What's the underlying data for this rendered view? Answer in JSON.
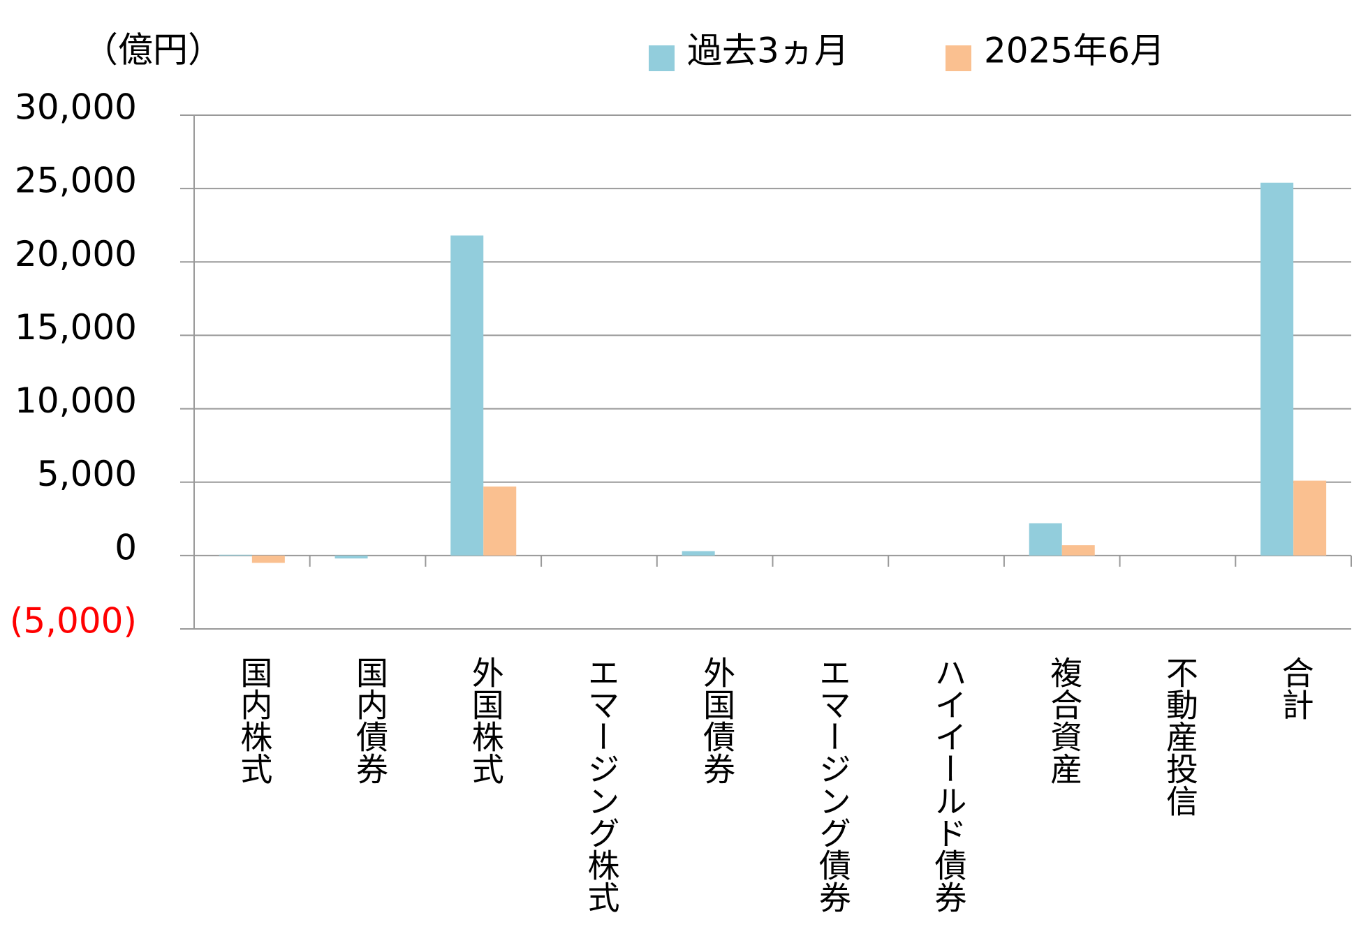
{
  "chart_data": {
    "type": "bar",
    "unit_label": "（億円）",
    "categories": [
      "国内株式",
      "国内債券",
      "外国株式",
      "エマージング株式",
      "外国債券",
      "エマージング債券",
      "ハイイールド債券",
      "複合資産",
      "不動産投信",
      "合計"
    ],
    "series": [
      {
        "name": "過去3ヵ月",
        "color": "#92cddc",
        "values": [
          50,
          -200,
          21800,
          0,
          300,
          0,
          0,
          2200,
          0,
          25400
        ]
      },
      {
        "name": "2025年6月",
        "color": "#fac090",
        "values": [
          -500,
          0,
          4700,
          0,
          0,
          0,
          0,
          700,
          0,
          5100
        ]
      }
    ],
    "ylim": [
      -5000,
      30000
    ],
    "yticks": [
      {
        "value": -5000,
        "label": "(5,000)"
      },
      0,
      {
        "value": 5000,
        "label": "5,000"
      },
      {
        "value": 10000,
        "label": "10,000"
      },
      {
        "value": 15000,
        "label": "15,000"
      },
      {
        "value": 20000,
        "label": "20,000"
      },
      {
        "value": 25000,
        "label": "25,000"
      },
      {
        "value": 30000,
        "label": "30,000"
      }
    ],
    "negative_label_color": "#ff0000",
    "grid": true
  }
}
